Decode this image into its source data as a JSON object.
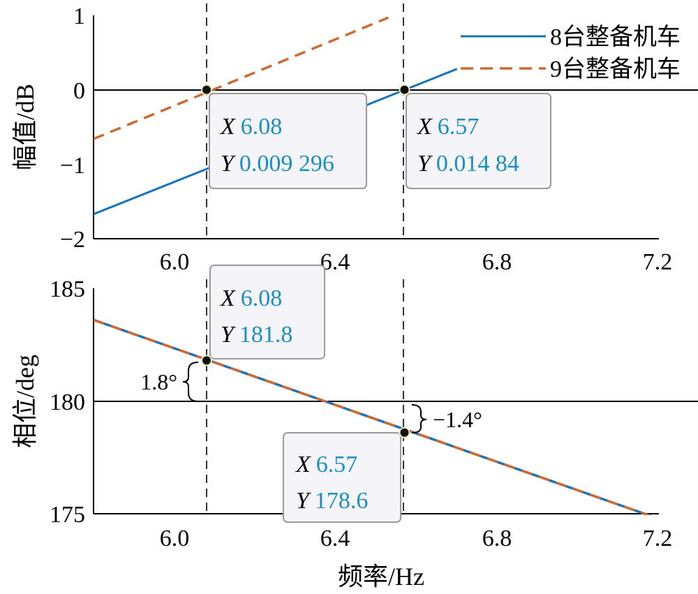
{
  "chart_data": [
    {
      "type": "line",
      "panel": "magnitude",
      "ylabel": "幅值/dB",
      "xlim": [
        5.8,
        7.2
      ],
      "ylim": [
        -2,
        1
      ],
      "xticks": [
        "6.0",
        "6.4",
        "6.8",
        "7.2"
      ],
      "yticks": [
        "1",
        "0",
        "−1",
        "−2"
      ],
      "reference_line": 0,
      "series": [
        {
          "name": "8台整备机车",
          "color": "#1874b8",
          "dash": "solid",
          "x": [
            5.8,
            6.7
          ],
          "y": [
            -1.67,
            0.28
          ]
        },
        {
          "name": "9台整备机车",
          "color": "#cd6a33",
          "dash": "dashed",
          "x": [
            5.8,
            6.53
          ],
          "y": [
            -0.66,
            0.97
          ]
        }
      ],
      "vlines": [
        6.08,
        6.57
      ],
      "datatips": [
        {
          "x": 6.08,
          "y": 0.0,
          "key_x": "X",
          "val_x": "6.08",
          "key_y": "Y",
          "val_y": "0.009 296"
        },
        {
          "x": 6.57,
          "y": 0.0,
          "key_x": "X",
          "val_x": "6.57",
          "key_y": "Y",
          "val_y": "0.014 84"
        }
      ]
    },
    {
      "type": "line",
      "panel": "phase",
      "ylabel": "相位/deg",
      "xlabel": "频率/Hz",
      "xlim": [
        5.8,
        7.2
      ],
      "ylim": [
        175,
        185
      ],
      "xticks": [
        "6.0",
        "6.4",
        "6.8",
        "7.2"
      ],
      "yticks": [
        "185",
        "180",
        "175"
      ],
      "reference_line": 180,
      "series": [
        {
          "name": "8台整备机车",
          "color": "#1874b8",
          "dash": "solid",
          "x": [
            5.8,
            7.18
          ],
          "y": [
            183.6,
            174.9
          ]
        },
        {
          "name": "9台整备机车",
          "color": "#cd6a33",
          "dash": "dashed",
          "x": [
            5.8,
            7.18
          ],
          "y": [
            183.6,
            174.9
          ]
        }
      ],
      "vlines": [
        6.08,
        6.57
      ],
      "datatips": [
        {
          "x": 6.08,
          "y": 181.8,
          "key_x": "X",
          "val_x": "6.08",
          "key_y": "Y",
          "val_y": "181.8"
        },
        {
          "x": 6.57,
          "y": 178.6,
          "key_x": "X",
          "val_x": "6.57",
          "key_y": "Y",
          "val_y": "178.6"
        }
      ],
      "annotations": [
        "1.8°",
        "−1.4°"
      ]
    }
  ],
  "legend": {
    "items": [
      {
        "label": "8台整备机车",
        "color": "#1874b8",
        "dash": "solid"
      },
      {
        "label": "9台整备机车",
        "color": "#cd6a33",
        "dash": "dashed"
      }
    ],
    "placement": "top-right"
  }
}
